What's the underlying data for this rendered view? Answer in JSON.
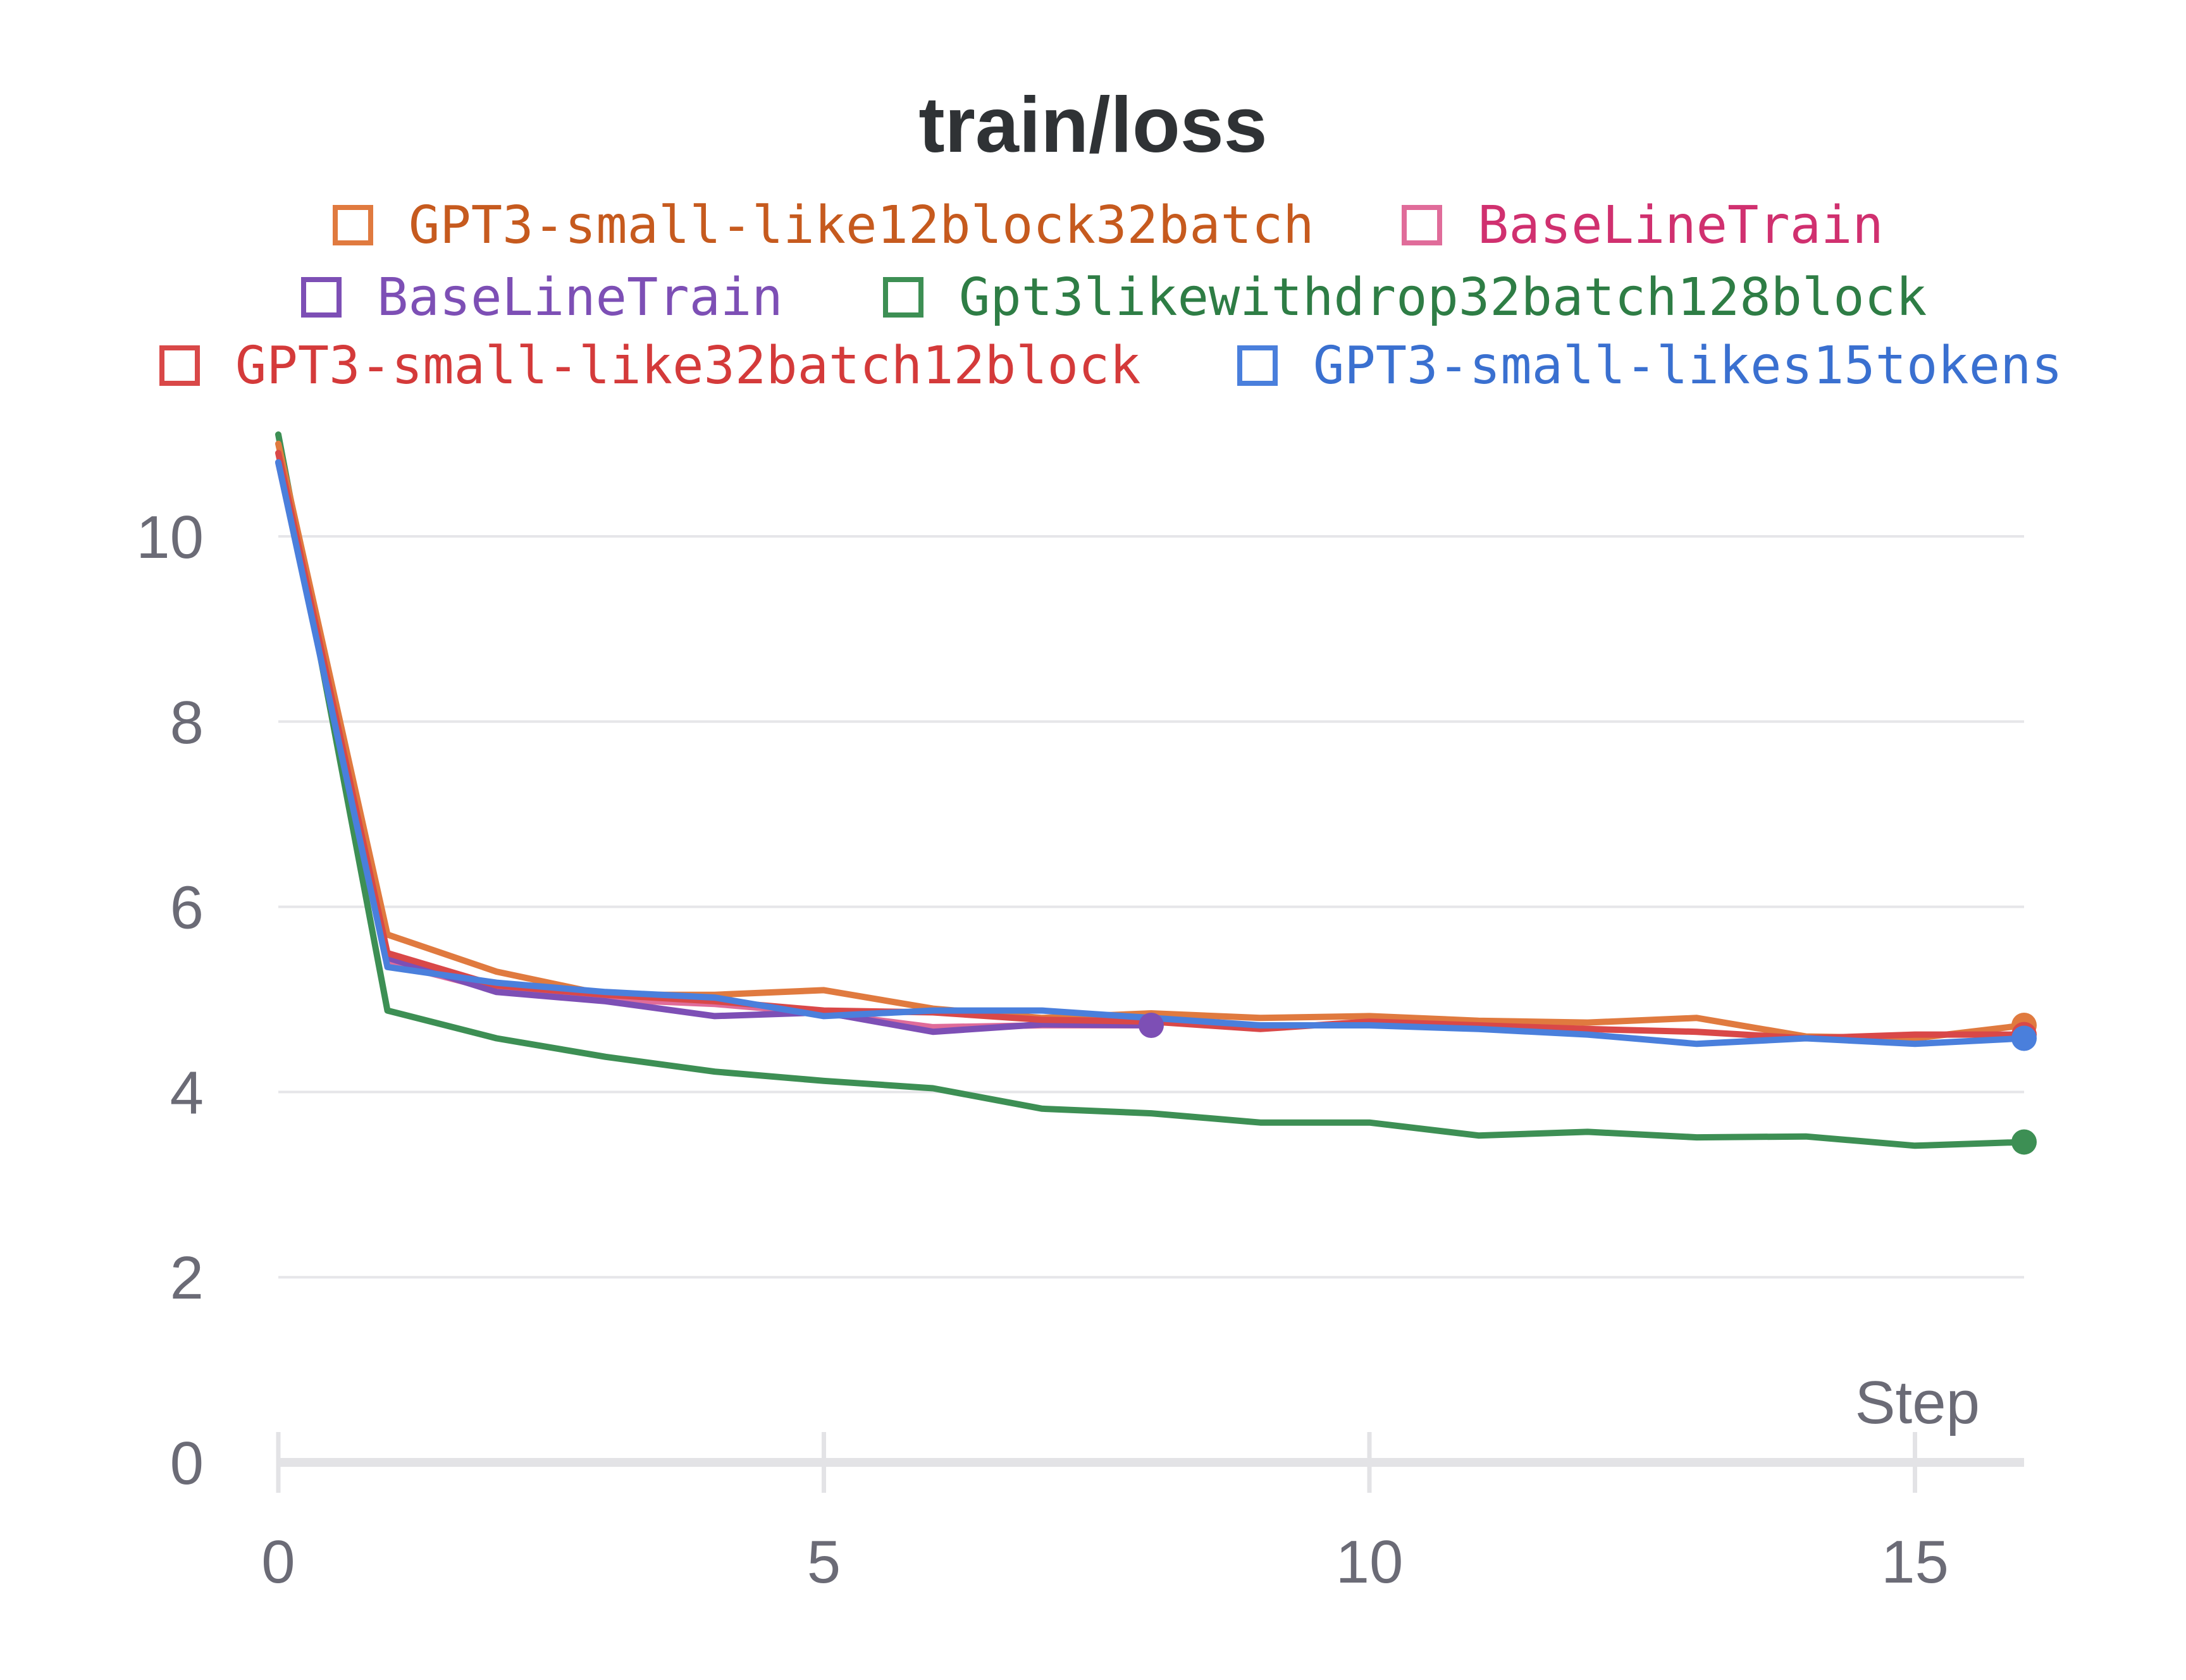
{
  "chart_data": {
    "type": "line",
    "title": "train/loss",
    "xlabel": "Step",
    "ylabel": "",
    "xlim": [
      0,
      16
    ],
    "ylim": [
      0,
      11
    ],
    "x_ticks": [
      "0",
      "5",
      "10",
      "15"
    ],
    "y_ticks": [
      "0",
      "2",
      "4",
      "6",
      "8",
      "10"
    ],
    "grid": true,
    "legend_position": "top",
    "series": [
      {
        "name": "GPT3-small-like12block32batch",
        "color": "#e07a3f",
        "legend_text_color": "#c65a1e",
        "x": [
          0,
          1,
          2,
          3,
          4,
          5,
          6,
          7,
          8,
          9,
          10,
          11,
          12,
          13,
          14,
          15,
          16
        ],
        "values": [
          11.0,
          5.7,
          5.3,
          5.05,
          5.05,
          5.1,
          4.9,
          4.8,
          4.85,
          4.8,
          4.82,
          4.77,
          4.75,
          4.8,
          4.6,
          4.58,
          4.72
        ]
      },
      {
        "name": "BaseLineTrain",
        "color": "#e06c9a",
        "legend_text_color": "#d0306f",
        "x": [
          0,
          1,
          2,
          3,
          4,
          5,
          6,
          7,
          8
        ],
        "values": [
          10.8,
          5.4,
          5.1,
          5.0,
          4.95,
          4.85,
          4.7,
          4.72,
          4.72
        ]
      },
      {
        "name": "BaseLineTrain",
        "color": "#7d4fb5",
        "legend_text_color": "#7d4fb5",
        "x": [
          0,
          1,
          2,
          3,
          4,
          5,
          6,
          7,
          8
        ],
        "values": [
          10.8,
          5.45,
          5.08,
          4.98,
          4.82,
          4.86,
          4.65,
          4.73,
          4.72
        ]
      },
      {
        "name": "Gpt3likewithdrop32batch128block",
        "color": "#3d8f54",
        "legend_text_color": "#2e7d45",
        "x": [
          0,
          1,
          2,
          3,
          4,
          5,
          6,
          7,
          8,
          9,
          10,
          11,
          12,
          13,
          14,
          15,
          16
        ],
        "values": [
          11.1,
          4.88,
          4.58,
          4.38,
          4.22,
          4.12,
          4.04,
          3.82,
          3.77,
          3.67,
          3.67,
          3.53,
          3.57,
          3.51,
          3.52,
          3.42,
          3.46
        ]
      },
      {
        "name": "GPT3-small-like32batch12block",
        "color": "#d94848",
        "legend_text_color": "#d43a3a",
        "x": [
          0,
          1,
          2,
          3,
          4,
          5,
          6,
          7,
          8,
          9,
          10,
          11,
          12,
          13,
          14,
          15,
          16
        ],
        "values": [
          10.9,
          5.5,
          5.15,
          5.05,
          4.98,
          4.88,
          4.86,
          4.78,
          4.76,
          4.68,
          4.76,
          4.72,
          4.68,
          4.65,
          4.58,
          4.62,
          4.62
        ]
      },
      {
        "name": "GPT3-small-likes15tokens",
        "color": "#4a7fdc",
        "legend_text_color": "#3a70d0",
        "x": [
          0,
          1,
          2,
          3,
          4,
          5,
          6,
          7,
          8,
          9,
          10,
          11,
          12,
          13,
          14,
          15,
          16
        ],
        "values": [
          10.8,
          5.35,
          5.18,
          5.08,
          5.02,
          4.82,
          4.88,
          4.88,
          4.8,
          4.72,
          4.72,
          4.68,
          4.62,
          4.52,
          4.58,
          4.52,
          4.58
        ]
      }
    ]
  }
}
